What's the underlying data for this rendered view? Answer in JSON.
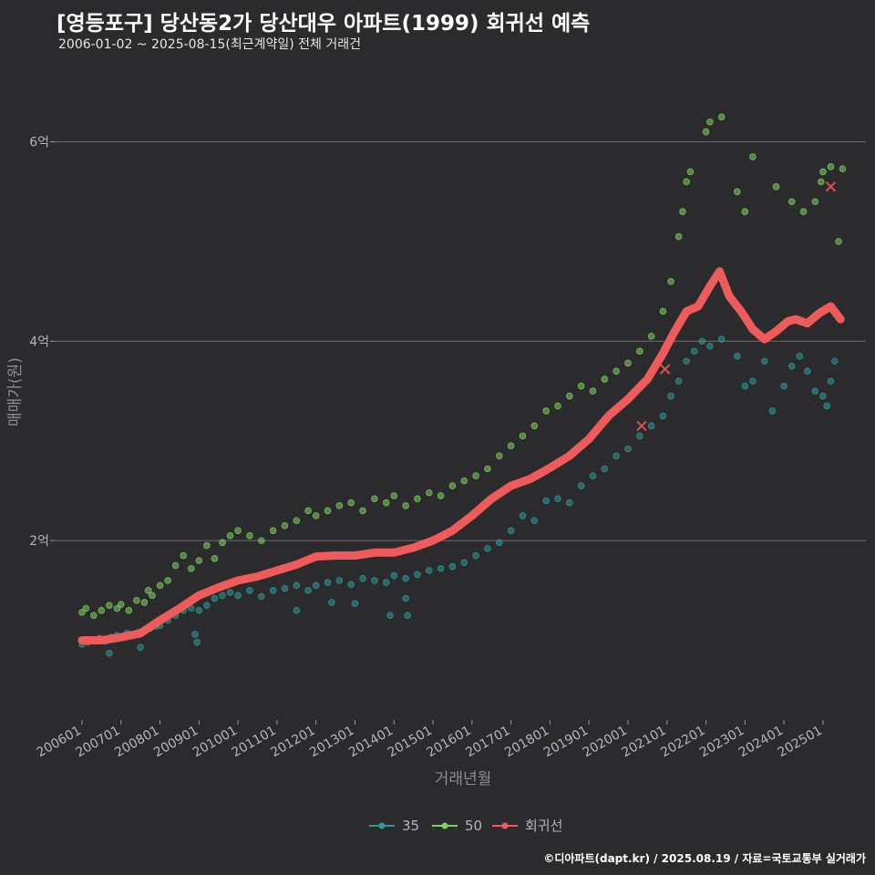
{
  "header": {
    "title": "[영등포구] 당산동2가 당산대우 아파트(1999) 회귀선 예측",
    "subtitle": "2006-01-02 ~ 2025-08-15(최근계약일) 전체 거래건"
  },
  "footer": {
    "credit": "©디아파트(dapt.kr) / 2025.08.19 / 자료=국토교통부 실거래가"
  },
  "colors": {
    "background": "#2b2b2d",
    "grid": "#6e6e70",
    "series_35": "#2e9a99",
    "series_50": "#7fd25f",
    "regression": "#ef5b5b"
  },
  "chart_data": {
    "type": "scatter",
    "xlabel": "거래년월",
    "ylabel": "매매가(원)",
    "ylim": [
      0.2,
      6.6
    ],
    "yticks": [
      {
        "value": 2,
        "label": "2억"
      },
      {
        "value": 4,
        "label": "4억"
      },
      {
        "value": 6,
        "label": "6억"
      }
    ],
    "xlim": [
      2005.3,
      2026.1
    ],
    "xticks": [
      {
        "value": 2006.0,
        "label": "200601"
      },
      {
        "value": 2007.0,
        "label": "200701"
      },
      {
        "value": 2008.0,
        "label": "200801"
      },
      {
        "value": 2009.0,
        "label": "200901"
      },
      {
        "value": 2010.0,
        "label": "201001"
      },
      {
        "value": 2011.0,
        "label": "201101"
      },
      {
        "value": 2012.0,
        "label": "201201"
      },
      {
        "value": 2013.0,
        "label": "201301"
      },
      {
        "value": 2014.0,
        "label": "201401"
      },
      {
        "value": 2015.0,
        "label": "201501"
      },
      {
        "value": 2016.0,
        "label": "201601"
      },
      {
        "value": 2017.0,
        "label": "201701"
      },
      {
        "value": 2018.0,
        "label": "201801"
      },
      {
        "value": 2019.0,
        "label": "201901"
      },
      {
        "value": 2020.0,
        "label": "202001"
      },
      {
        "value": 2021.0,
        "label": "202101"
      },
      {
        "value": 2022.0,
        "label": "202201"
      },
      {
        "value": 2023.0,
        "label": "202301"
      },
      {
        "value": 2024.0,
        "label": "202401"
      },
      {
        "value": 2025.0,
        "label": "202501"
      }
    ],
    "grid": "horizontal",
    "legend_position": "bottom",
    "series": [
      {
        "name": "35",
        "kind": "points",
        "points": [
          [
            2006.0,
            0.96
          ],
          [
            2006.15,
            0.98
          ],
          [
            2006.3,
            1.0
          ],
          [
            2006.45,
            1.02
          ],
          [
            2006.6,
            0.99
          ],
          [
            2006.75,
            1.03
          ],
          [
            2006.9,
            1.05
          ],
          [
            2007.0,
            1.03
          ],
          [
            2007.15,
            1.07
          ],
          [
            2007.3,
            1.05
          ],
          [
            2007.45,
            1.08
          ],
          [
            2007.6,
            1.1
          ],
          [
            2007.75,
            1.12
          ],
          [
            2007.9,
            1.14
          ],
          [
            2006.7,
            0.87
          ],
          [
            2007.5,
            0.93
          ],
          [
            2008.0,
            1.15
          ],
          [
            2008.2,
            1.2
          ],
          [
            2008.4,
            1.25
          ],
          [
            2008.6,
            1.3
          ],
          [
            2008.8,
            1.32
          ],
          [
            2009.0,
            1.3
          ],
          [
            2009.2,
            1.35
          ],
          [
            2009.4,
            1.42
          ],
          [
            2009.6,
            1.45
          ],
          [
            2009.8,
            1.48
          ],
          [
            2008.9,
            1.06
          ],
          [
            2008.95,
            0.98
          ],
          [
            2010.0,
            1.45
          ],
          [
            2010.3,
            1.5
          ],
          [
            2010.6,
            1.44
          ],
          [
            2010.9,
            1.5
          ],
          [
            2011.2,
            1.52
          ],
          [
            2011.5,
            1.55
          ],
          [
            2011.8,
            1.5
          ],
          [
            2012.0,
            1.55
          ],
          [
            2012.3,
            1.58
          ],
          [
            2012.6,
            1.6
          ],
          [
            2012.9,
            1.56
          ],
          [
            2013.2,
            1.62
          ],
          [
            2013.5,
            1.6
          ],
          [
            2013.8,
            1.58
          ],
          [
            2011.5,
            1.3
          ],
          [
            2012.4,
            1.38
          ],
          [
            2013.0,
            1.37
          ],
          [
            2013.9,
            1.25
          ],
          [
            2014.3,
            1.42
          ],
          [
            2014.35,
            1.25
          ],
          [
            2014.0,
            1.65
          ],
          [
            2014.3,
            1.62
          ],
          [
            2014.6,
            1.66
          ],
          [
            2014.9,
            1.7
          ],
          [
            2015.2,
            1.72
          ],
          [
            2015.5,
            1.74
          ],
          [
            2015.8,
            1.78
          ],
          [
            2016.1,
            1.85
          ],
          [
            2016.4,
            1.92
          ],
          [
            2016.7,
            1.98
          ],
          [
            2017.0,
            2.1
          ],
          [
            2017.3,
            2.25
          ],
          [
            2017.6,
            2.2
          ],
          [
            2017.9,
            2.4
          ],
          [
            2018.2,
            2.42
          ],
          [
            2018.5,
            2.38
          ],
          [
            2018.8,
            2.55
          ],
          [
            2019.1,
            2.65
          ],
          [
            2019.4,
            2.72
          ],
          [
            2019.7,
            2.85
          ],
          [
            2020.0,
            2.92
          ],
          [
            2020.3,
            3.05
          ],
          [
            2020.6,
            3.15
          ],
          [
            2020.9,
            3.25
          ],
          [
            2021.1,
            3.45
          ],
          [
            2021.3,
            3.6
          ],
          [
            2021.5,
            3.8
          ],
          [
            2021.7,
            3.9
          ],
          [
            2021.9,
            4.0
          ],
          [
            2022.1,
            3.95
          ],
          [
            2022.4,
            4.02
          ],
          [
            2022.8,
            3.85
          ],
          [
            2023.0,
            3.55
          ],
          [
            2023.2,
            3.6
          ],
          [
            2023.5,
            3.8
          ],
          [
            2023.7,
            3.3
          ],
          [
            2024.0,
            3.55
          ],
          [
            2024.2,
            3.75
          ],
          [
            2024.4,
            3.85
          ],
          [
            2024.6,
            3.7
          ],
          [
            2024.8,
            3.5
          ],
          [
            2025.0,
            3.45
          ],
          [
            2025.2,
            3.6
          ],
          [
            2025.3,
            3.8
          ],
          [
            2025.1,
            3.35
          ]
        ]
      },
      {
        "name": "50",
        "kind": "points",
        "points": [
          [
            2006.0,
            1.28
          ],
          [
            2006.1,
            1.32
          ],
          [
            2006.3,
            1.25
          ],
          [
            2006.5,
            1.3
          ],
          [
            2006.7,
            1.35
          ],
          [
            2006.9,
            1.32
          ],
          [
            2007.0,
            1.36
          ],
          [
            2007.2,
            1.3
          ],
          [
            2007.4,
            1.4
          ],
          [
            2007.6,
            1.38
          ],
          [
            2007.8,
            1.45
          ],
          [
            2007.7,
            1.5
          ],
          [
            2008.0,
            1.55
          ],
          [
            2008.2,
            1.6
          ],
          [
            2008.4,
            1.75
          ],
          [
            2008.6,
            1.85
          ],
          [
            2008.8,
            1.72
          ],
          [
            2009.0,
            1.8
          ],
          [
            2009.2,
            1.95
          ],
          [
            2009.4,
            1.82
          ],
          [
            2009.6,
            1.98
          ],
          [
            2009.8,
            2.05
          ],
          [
            2010.0,
            2.1
          ],
          [
            2010.3,
            2.05
          ],
          [
            2010.6,
            2.0
          ],
          [
            2010.9,
            2.1
          ],
          [
            2011.2,
            2.15
          ],
          [
            2011.5,
            2.2
          ],
          [
            2011.8,
            2.3
          ],
          [
            2012.0,
            2.25
          ],
          [
            2012.3,
            2.3
          ],
          [
            2012.6,
            2.35
          ],
          [
            2012.9,
            2.38
          ],
          [
            2013.2,
            2.3
          ],
          [
            2013.5,
            2.42
          ],
          [
            2013.8,
            2.38
          ],
          [
            2014.0,
            2.45
          ],
          [
            2014.3,
            2.35
          ],
          [
            2014.6,
            2.42
          ],
          [
            2014.9,
            2.48
          ],
          [
            2015.2,
            2.45
          ],
          [
            2015.5,
            2.55
          ],
          [
            2015.8,
            2.6
          ],
          [
            2016.1,
            2.65
          ],
          [
            2016.4,
            2.72
          ],
          [
            2016.7,
            2.85
          ],
          [
            2017.0,
            2.95
          ],
          [
            2017.3,
            3.05
          ],
          [
            2017.6,
            3.15
          ],
          [
            2017.9,
            3.3
          ],
          [
            2018.2,
            3.35
          ],
          [
            2018.5,
            3.45
          ],
          [
            2018.8,
            3.55
          ],
          [
            2019.1,
            3.5
          ],
          [
            2019.4,
            3.62
          ],
          [
            2019.7,
            3.7
          ],
          [
            2020.0,
            3.78
          ],
          [
            2020.3,
            3.9
          ],
          [
            2020.6,
            4.05
          ],
          [
            2020.9,
            4.3
          ],
          [
            2021.1,
            4.6
          ],
          [
            2021.3,
            5.05
          ],
          [
            2021.5,
            5.6
          ],
          [
            2021.6,
            5.7
          ],
          [
            2021.4,
            5.3
          ],
          [
            2022.0,
            6.1
          ],
          [
            2022.1,
            6.2
          ],
          [
            2022.4,
            6.25
          ],
          [
            2022.8,
            5.5
          ],
          [
            2023.0,
            5.3
          ],
          [
            2023.2,
            5.85
          ],
          [
            2023.8,
            5.55
          ],
          [
            2024.2,
            5.4
          ],
          [
            2024.5,
            5.3
          ],
          [
            2024.8,
            5.4
          ],
          [
            2025.0,
            5.7
          ],
          [
            2025.2,
            5.75
          ],
          [
            2025.4,
            5.0
          ],
          [
            2025.5,
            5.73
          ],
          [
            2024.95,
            5.6
          ]
        ]
      },
      {
        "name": "회귀선",
        "kind": "line",
        "points": [
          [
            2006.0,
            1.0
          ],
          [
            2006.5,
            1.0
          ],
          [
            2007.0,
            1.03
          ],
          [
            2007.5,
            1.07
          ],
          [
            2008.0,
            1.2
          ],
          [
            2008.5,
            1.32
          ],
          [
            2009.0,
            1.45
          ],
          [
            2009.5,
            1.53
          ],
          [
            2010.0,
            1.6
          ],
          [
            2010.5,
            1.64
          ],
          [
            2011.0,
            1.7
          ],
          [
            2011.5,
            1.76
          ],
          [
            2012.0,
            1.84
          ],
          [
            2012.5,
            1.85
          ],
          [
            2013.0,
            1.85
          ],
          [
            2013.5,
            1.88
          ],
          [
            2014.0,
            1.88
          ],
          [
            2014.5,
            1.93
          ],
          [
            2015.0,
            2.0
          ],
          [
            2015.5,
            2.1
          ],
          [
            2016.0,
            2.25
          ],
          [
            2016.5,
            2.42
          ],
          [
            2017.0,
            2.55
          ],
          [
            2017.5,
            2.62
          ],
          [
            2018.0,
            2.73
          ],
          [
            2018.5,
            2.85
          ],
          [
            2019.0,
            3.02
          ],
          [
            2019.5,
            3.25
          ],
          [
            2020.0,
            3.42
          ],
          [
            2020.5,
            3.62
          ],
          [
            2020.9,
            3.88
          ],
          [
            2021.2,
            4.1
          ],
          [
            2021.5,
            4.3
          ],
          [
            2021.8,
            4.35
          ],
          [
            2022.1,
            4.55
          ],
          [
            2022.35,
            4.7
          ],
          [
            2022.6,
            4.45
          ],
          [
            2022.9,
            4.3
          ],
          [
            2023.2,
            4.12
          ],
          [
            2023.5,
            4.02
          ],
          [
            2023.8,
            4.1
          ],
          [
            2024.1,
            4.2
          ],
          [
            2024.3,
            4.22
          ],
          [
            2024.6,
            4.18
          ],
          [
            2024.9,
            4.28
          ],
          [
            2025.2,
            4.35
          ],
          [
            2025.45,
            4.22
          ]
        ]
      },
      {
        "name": "marker_x",
        "kind": "x-marker",
        "points": [
          [
            2020.35,
            3.15
          ],
          [
            2020.95,
            3.72
          ],
          [
            2025.2,
            5.55
          ]
        ]
      }
    ],
    "legend": [
      {
        "label": "35",
        "color_key": "series_35"
      },
      {
        "label": "50",
        "color_key": "series_50"
      },
      {
        "label": "회귀선",
        "color_key": "regression"
      }
    ]
  }
}
